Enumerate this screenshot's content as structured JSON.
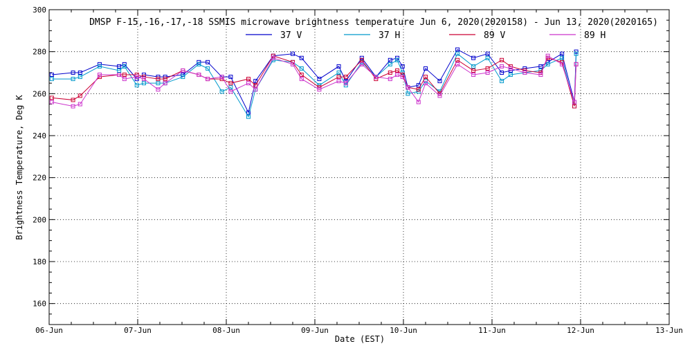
{
  "chart_data": {
    "type": "line",
    "title": "DMSP F-15,-16,-17,-18 SSMIS microwave brightness temperature Jun  6, 2020(2020158) - Jun 13, 2020(2020165)",
    "xlabel": "Date (EST)",
    "ylabel": "Brightness Temperature, Deg K",
    "xlim": [
      0,
      7
    ],
    "ylim": [
      150,
      300
    ],
    "x_ticks": [
      "06-Jun",
      "07-Jun",
      "08-Jun",
      "09-Jun",
      "10-Jun",
      "11-Jun",
      "12-Jun",
      "13-Jun"
    ],
    "y_ticks": [
      160,
      180,
      200,
      220,
      240,
      260,
      280,
      300
    ],
    "grid": true,
    "legend_position": "top",
    "x_unit": "days since 06-Jun 00:00 EST",
    "x": [
      0.03,
      0.27,
      0.35,
      0.57,
      0.79,
      0.85,
      0.99,
      1.07,
      1.23,
      1.31,
      1.51,
      1.69,
      1.79,
      1.95,
      2.05,
      2.25,
      2.33,
      2.53,
      2.75,
      2.85,
      3.05,
      3.27,
      3.35,
      3.53,
      3.69,
      3.85,
      3.93,
      3.99,
      4.05,
      4.17,
      4.25,
      4.41,
      4.61,
      4.79,
      4.95,
      5.11,
      5.21,
      5.37,
      5.55,
      5.63,
      5.79,
      5.93
    ],
    "series": [
      {
        "name": "37 V",
        "color": "#0000cc",
        "values": [
          269,
          270,
          270,
          274,
          273,
          274,
          267,
          269,
          268,
          268,
          269,
          275,
          275,
          268,
          268,
          251,
          266,
          278,
          279,
          277,
          267,
          273,
          266,
          277,
          268,
          276,
          277,
          273,
          263,
          264,
          272,
          266,
          281,
          277,
          279,
          270,
          271,
          272,
          273,
          275,
          279,
          256
        ]
      },
      {
        "name": "37 H",
        "color": "#0099cc",
        "values": [
          267,
          267,
          268,
          273,
          271,
          273,
          264,
          265,
          265,
          265,
          268,
          274,
          272,
          261,
          263,
          249,
          262,
          276,
          275,
          272,
          264,
          270,
          264,
          275,
          268,
          274,
          276,
          270,
          260,
          261,
          266,
          261,
          279,
          273,
          277,
          266,
          269,
          270,
          271,
          274,
          277,
          254
        ]
      },
      {
        "name": "89 V",
        "color": "#cc0033",
        "values": [
          258,
          257,
          259,
          268,
          269,
          269,
          269,
          268,
          267,
          267,
          271,
          269,
          267,
          267,
          265,
          267,
          264,
          278,
          275,
          269,
          263,
          268,
          268,
          276,
          267,
          270,
          271,
          269,
          263,
          262,
          268,
          260,
          276,
          271,
          272,
          276,
          273,
          271,
          270,
          277,
          275,
          254
        ]
      },
      {
        "name": "89 H",
        "color": "#cc33cc",
        "values": [
          256,
          254,
          255,
          269,
          269,
          267,
          268,
          267,
          262,
          265,
          271,
          269,
          267,
          268,
          261,
          265,
          262,
          277,
          274,
          267,
          262,
          266,
          265,
          274,
          268,
          267,
          269,
          268,
          263,
          256,
          265,
          259,
          274,
          269,
          270,
          273,
          272,
          270,
          269,
          278,
          274,
          256
        ]
      }
    ],
    "final_point": {
      "x": 5.95,
      "values": [
        280,
        279,
        274,
        274
      ]
    }
  }
}
